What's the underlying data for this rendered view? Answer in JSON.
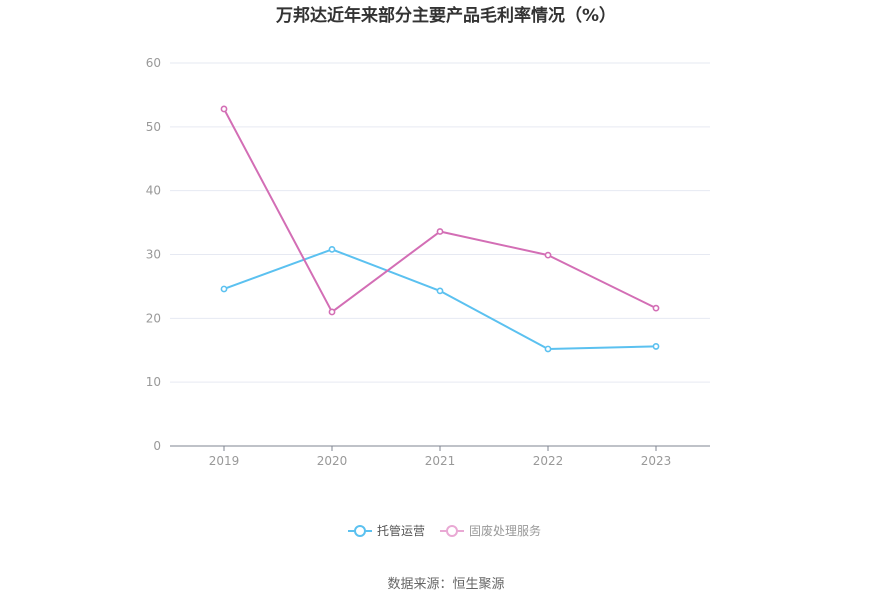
{
  "chart_data": {
    "type": "line",
    "title": "万邦达近年来部分主要产品毛利率情况（%）",
    "categories": [
      "2019",
      "2020",
      "2021",
      "2022",
      "2023"
    ],
    "ylim": [
      0,
      60
    ],
    "yticks": [
      "0",
      "10",
      "20",
      "30",
      "40",
      "50",
      "60"
    ],
    "grid": true,
    "legend_position": "bottom-center",
    "series": [
      {
        "name": "托管运营",
        "color": "#5bc1f0",
        "values": [
          24.6,
          30.8,
          24.3,
          15.2,
          15.6
        ]
      },
      {
        "name": "固废处理服务",
        "color": "#d36eb5",
        "legend_color": "#e9a9d4",
        "values": [
          52.8,
          21.0,
          33.6,
          29.9,
          21.6
        ]
      }
    ]
  },
  "source": "数据来源：恒生聚源"
}
